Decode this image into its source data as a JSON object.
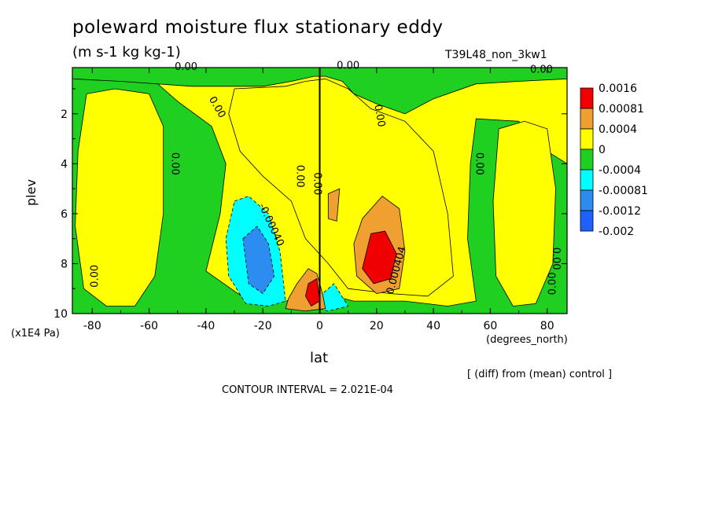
{
  "title": "poleward moisture flux stationary eddy",
  "subtitle": "(m s-1 kg kg-1)",
  "run_label": "T39L48_non_3kw1",
  "xlabel": "lat",
  "ylabel": "plev",
  "x_units": "(degrees_north)",
  "y_units": "(x1E4 Pa)",
  "diff_note": "[ (diff) from (mean) control ]",
  "contour_interval": "CONTOUR INTERVAL = 2.021E-04",
  "colors": {
    "red": "#f00000",
    "orange": "#f0a030",
    "yellow": "#ffff00",
    "green": "#20d020",
    "cyan": "#00ffff",
    "blue": "#2c8cf0",
    "deepblue": "#2060ff"
  },
  "chart_data": {
    "type": "heatmap",
    "x_range": [
      -87,
      87
    ],
    "y_range": [
      0.15,
      10
    ],
    "y_reversed": true,
    "x_ticks": [
      "-80",
      "-60",
      "-40",
      "-20",
      "0",
      "20",
      "40",
      "60",
      "80"
    ],
    "y_ticks": [
      "2",
      "4",
      "6",
      "8",
      "10"
    ],
    "legend": {
      "labels": [
        "0.0016",
        "0.00081",
        "0.0004",
        "0",
        "-0.0004",
        "-0.00081",
        "-0.0012",
        "-0.002"
      ],
      "colors": [
        "#f00000",
        "#f0a030",
        "#ffff00",
        "#20d020",
        "#00ffff",
        "#2c8cf0",
        "#2060ff"
      ]
    },
    "contour_labels": [
      "0.00",
      "0.00",
      "0.00",
      "0.00",
      "0.00",
      "0.00",
      "0.00",
      "0.00",
      "0.00",
      "0.00",
      "0.00",
      "0.00",
      "0.000404",
      "-0.00040"
    ],
    "regions": [
      {
        "level": "green",
        "points": [
          [
            -87,
            0.3
          ],
          [
            -60,
            0.5
          ],
          [
            -50,
            1.5
          ],
          [
            -38,
            2.5
          ],
          [
            -33,
            4
          ],
          [
            -35,
            6
          ],
          [
            -40,
            8.3
          ],
          [
            -25,
            9.5
          ],
          [
            -12,
            9.5
          ],
          [
            -5,
            9.3
          ],
          [
            5,
            9.3
          ],
          [
            12,
            9.5
          ],
          [
            30,
            9.5
          ],
          [
            45,
            9.7
          ],
          [
            55,
            9.5
          ],
          [
            52,
            7
          ],
          [
            53,
            4
          ],
          [
            55,
            2.2
          ],
          [
            70,
            2.3
          ],
          [
            80,
            3.5
          ],
          [
            87,
            4
          ],
          [
            87,
            10
          ],
          [
            -87,
            10
          ]
        ]
      },
      {
        "level": "green",
        "points": [
          [
            -87,
            0.15
          ],
          [
            87,
            0.15
          ],
          [
            87,
            0.6
          ],
          [
            70,
            0.7
          ],
          [
            55,
            0.8
          ],
          [
            40,
            1.4
          ],
          [
            30,
            2
          ],
          [
            20,
            1.6
          ],
          [
            12,
            1.2
          ],
          [
            8,
            0.7
          ],
          [
            2,
            0.5
          ],
          [
            -2,
            0.5
          ],
          [
            -10,
            0.7
          ],
          [
            -20,
            0.9
          ],
          [
            -45,
            0.9
          ],
          [
            -70,
            0.7
          ],
          [
            -87,
            0.6
          ]
        ]
      },
      {
        "level": "yellow",
        "points": [
          [
            -82,
            1.2
          ],
          [
            -72,
            1.0
          ],
          [
            -60,
            1.2
          ],
          [
            -55,
            2.5
          ],
          [
            -55,
            6
          ],
          [
            -58,
            8.5
          ],
          [
            -65,
            9.7
          ],
          [
            -75,
            9.7
          ],
          [
            -83,
            9.0
          ],
          [
            -86,
            6.5
          ],
          [
            -85,
            3.5
          ]
        ]
      },
      {
        "level": "yellow",
        "points": [
          [
            63,
            2.6
          ],
          [
            72,
            2.3
          ],
          [
            80,
            2.6
          ],
          [
            83,
            5
          ],
          [
            82,
            8
          ],
          [
            76,
            9.6
          ],
          [
            68,
            9.7
          ],
          [
            62,
            8.5
          ],
          [
            61,
            5.5
          ]
        ]
      },
      {
        "level": "yellow",
        "points": [
          [
            -30,
            1.0
          ],
          [
            -12,
            0.9
          ],
          [
            -5,
            0.7
          ],
          [
            2,
            0.6
          ],
          [
            10,
            1.0
          ],
          [
            18,
            1.8
          ],
          [
            30,
            2.3
          ],
          [
            40,
            3.5
          ],
          [
            45,
            6
          ],
          [
            47,
            8.5
          ],
          [
            38,
            9.3
          ],
          [
            25,
            9.2
          ],
          [
            10,
            9.0
          ],
          [
            3,
            8.0
          ],
          [
            -5,
            7.0
          ],
          [
            -10,
            5.5
          ],
          [
            -20,
            4.5
          ],
          [
            -28,
            3.5
          ],
          [
            -32,
            2
          ]
        ]
      },
      {
        "level": "cyan",
        "points": [
          [
            -30,
            5.5
          ],
          [
            -25,
            5.3
          ],
          [
            -18,
            6
          ],
          [
            -14,
            7.5
          ],
          [
            -12,
            9.5
          ],
          [
            -18,
            9.7
          ],
          [
            -26,
            9.6
          ],
          [
            -32,
            8.5
          ],
          [
            -33,
            7
          ]
        ]
      },
      {
        "level": "cyan",
        "points": [
          [
            0,
            9.3
          ],
          [
            5,
            8.8
          ],
          [
            10,
            9.7
          ],
          [
            3,
            9.9
          ],
          [
            0,
            9.8
          ]
        ]
      },
      {
        "level": "blue",
        "points": [
          [
            -27,
            7.0
          ],
          [
            -22,
            6.5
          ],
          [
            -18,
            7.2
          ],
          [
            -16,
            8.5
          ],
          [
            -20,
            9.2
          ],
          [
            -25,
            8.8
          ]
        ]
      },
      {
        "level": "orange",
        "points": [
          [
            15,
            6.2
          ],
          [
            22,
            5.3
          ],
          [
            28,
            5.8
          ],
          [
            30,
            7.5
          ],
          [
            28,
            9.0
          ],
          [
            20,
            9.2
          ],
          [
            13,
            8.5
          ],
          [
            12,
            7.2
          ]
        ]
      },
      {
        "level": "orange",
        "points": [
          [
            -8,
            8.8
          ],
          [
            -4,
            8.2
          ],
          [
            -1,
            8.4
          ],
          [
            1,
            9.2
          ],
          [
            2,
            9.8
          ],
          [
            -5,
            9.9
          ],
          [
            -12,
            9.8
          ],
          [
            -11,
            9.4
          ]
        ]
      },
      {
        "level": "orange",
        "points": [
          [
            3,
            5.2
          ],
          [
            7,
            5.0
          ],
          [
            6,
            6.3
          ],
          [
            3,
            6.2
          ]
        ]
      },
      {
        "level": "red",
        "points": [
          [
            18,
            6.8
          ],
          [
            23,
            6.7
          ],
          [
            27,
            7.6
          ],
          [
            25,
            8.6
          ],
          [
            19,
            8.8
          ],
          [
            15,
            8.2
          ]
        ]
      },
      {
        "level": "red",
        "points": [
          [
            -4,
            8.8
          ],
          [
            -1,
            8.6
          ],
          [
            0,
            9.5
          ],
          [
            -3,
            9.7
          ],
          [
            -5,
            9.3
          ]
        ]
      }
    ]
  }
}
